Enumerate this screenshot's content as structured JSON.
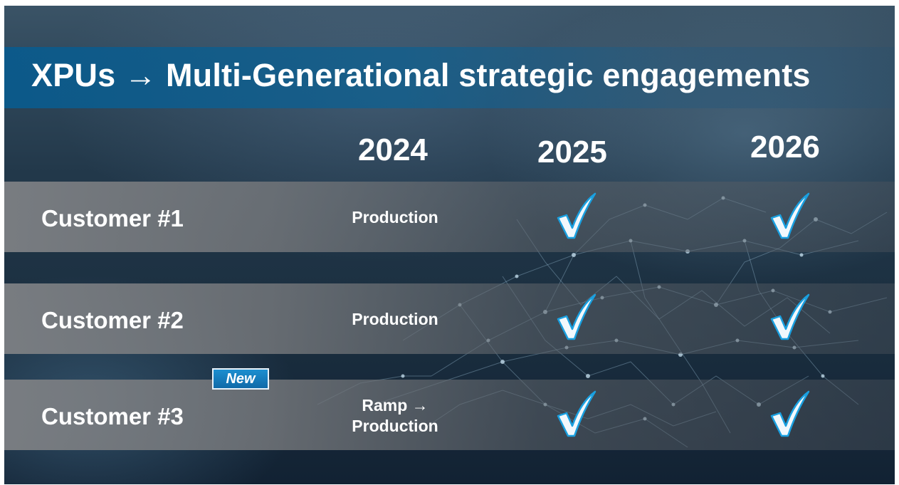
{
  "title": "XPUs → Multi-Generational strategic engagements",
  "years": [
    "2024",
    "2025",
    "2026"
  ],
  "rows": [
    {
      "customer": "Customer #1",
      "status_2024": "Production",
      "check_2025": true,
      "check_2026": true
    },
    {
      "customer": "Customer #2",
      "status_2024": "Production",
      "check_2025": true,
      "check_2026": true
    },
    {
      "customer": "Customer #3",
      "badge": "New",
      "status_2024_line1": "Ramp →",
      "status_2024_line2": "Production",
      "check_2025": true,
      "check_2026": true
    }
  ],
  "icons": {
    "check": "checkmark-icon"
  },
  "colors": {
    "title_band": "#0f5f8f",
    "check_fill": "#f2f8fc",
    "check_outline": "#1aa0e0",
    "badge": "#1480c0"
  }
}
